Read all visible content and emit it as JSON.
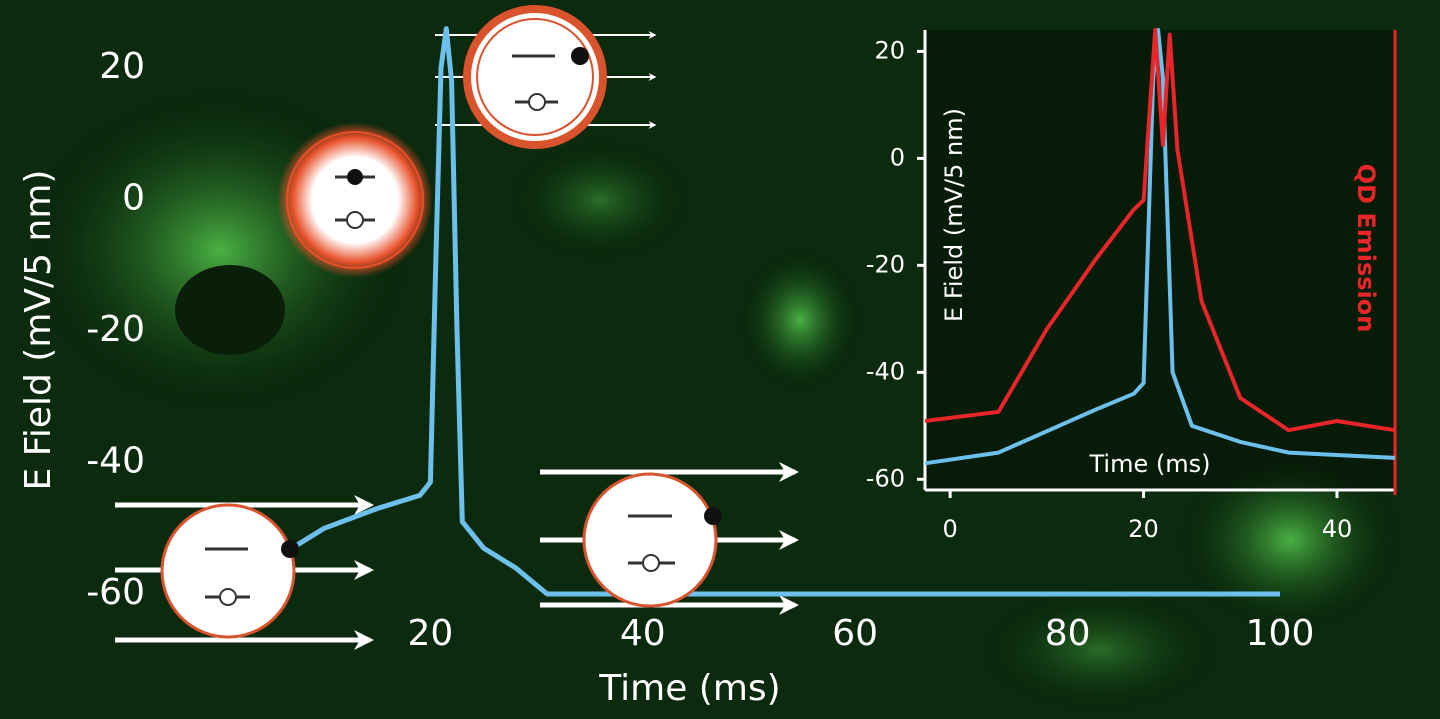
{
  "chart_data": [
    {
      "type": "line",
      "xlabel": "Time (ms)",
      "ylabel": "E Field (mV/5 nm)",
      "x": [
        7,
        10,
        15,
        19,
        20,
        20.5,
        21,
        21.5,
        22,
        22.5,
        23,
        25,
        28,
        31,
        40,
        60,
        80,
        100
      ],
      "series": [
        {
          "color": "#6ec0ec",
          "values": [
            -53,
            -50,
            -47,
            -45,
            -43,
            -10,
            20,
            26,
            18,
            -20,
            -49,
            -53,
            -56,
            -60,
            -60,
            -60,
            -60,
            -60
          ]
        }
      ],
      "xlim": [
        0,
        100
      ],
      "ylim": [
        -60,
        20
      ],
      "xticks": [
        20,
        40,
        60,
        80,
        100
      ],
      "yticks": [
        20,
        0,
        -20,
        -40,
        -60
      ]
    },
    {
      "type": "line",
      "xlabel": "Time (ms)",
      "ylabel": "E Field (mV/5 nm)",
      "y2label": "QD Emission",
      "series": [
        {
          "color": "#6ec0ec",
          "x": [
            -2.6,
            5,
            10,
            15,
            19,
            20,
            21,
            21.5,
            22,
            23,
            25,
            30,
            35,
            46
          ],
          "values": [
            -57,
            -55,
            -51,
            -47,
            -44,
            -42,
            15,
            24,
            15,
            -40,
            -50,
            -53,
            -55,
            -56
          ]
        },
        {
          "color": "#e8262a",
          "axis": "y2",
          "x": [
            -2.6,
            5,
            10,
            15,
            19,
            20,
            21.2,
            22,
            22.7,
            23.5,
            26,
            30,
            35,
            40,
            46
          ],
          "values": [
            0.15,
            0.17,
            0.35,
            0.5,
            0.61,
            0.63,
            1.0,
            0.75,
            0.99,
            0.74,
            0.41,
            0.2,
            0.13,
            0.15,
            0.13
          ]
        }
      ],
      "xlim": [
        -2.6,
        46
      ],
      "ylim": [
        -62,
        24
      ],
      "y2lim": [
        0,
        1
      ],
      "xticks": [
        0,
        20,
        40
      ],
      "yticks": [
        20,
        0,
        -20,
        -40,
        -60
      ]
    }
  ]
}
